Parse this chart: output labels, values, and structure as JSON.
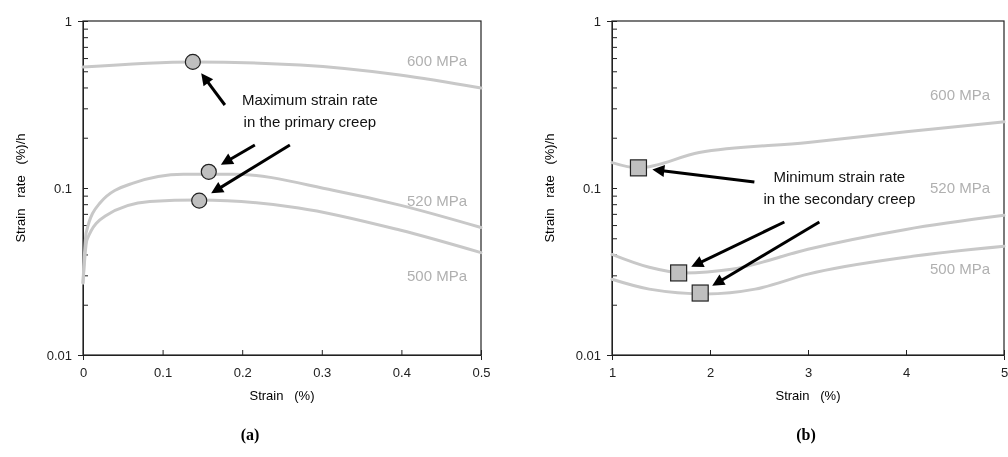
{
  "chart_data": [
    {
      "type": "line",
      "xlabel": "Strain   (%)",
      "ylabel": "Strain   rate   (%)/h",
      "log": "y",
      "grid": false,
      "xlim": [
        0,
        0.5
      ],
      "xticks": [
        0,
        0.1,
        0.2,
        0.3,
        0.4,
        0.5
      ],
      "ylim": [
        0.01,
        1
      ],
      "yticks": [
        0.01,
        {
          "value": 0.02,
          "label": null
        },
        {
          "value": 0.03,
          "label": null
        },
        {
          "value": 0.04,
          "label": null
        },
        {
          "value": 0.05,
          "label": null
        },
        {
          "value": 0.06,
          "label": null
        },
        {
          "value": 0.07,
          "label": null
        },
        {
          "value": 0.08,
          "label": null
        },
        {
          "value": 0.09,
          "label": null
        },
        0.1,
        {
          "value": 0.2,
          "label": null
        },
        {
          "value": 0.3,
          "label": null
        },
        {
          "value": 0.4,
          "label": null
        },
        {
          "value": 0.5,
          "label": null
        },
        {
          "value": 0.6,
          "label": null
        },
        {
          "value": 0.7,
          "label": null
        },
        {
          "value": 0.8,
          "label": null
        },
        {
          "value": 0.9,
          "label": null
        },
        1
      ],
      "series": [
        {
          "name": "600 MPa",
          "color": "#c8c8c8",
          "x": [
            0,
            0.138,
            0.273,
            0.398,
            0.5
          ],
          "values": [
            0.53,
            0.569,
            0.545,
            0.475,
            0.397
          ]
        },
        {
          "name": "520 MPa",
          "color": "#c8c8c8",
          "x": [
            0,
            0.004,
            0.021,
            0.063,
            0.126,
            0.19,
            0.314,
            0.398,
            0.5
          ],
          "values": [
            0.027,
            0.054,
            0.081,
            0.107,
            0.121,
            0.121,
            0.097,
            0.079,
            0.058
          ]
        },
        {
          "name": "500 MPa",
          "color": "#c8c8c8",
          "x": [
            0,
            0.005,
            0.028,
            0.084,
            0.146,
            0.271,
            0.398,
            0.5
          ],
          "values": [
            0.027,
            0.049,
            0.068,
            0.083,
            0.0847,
            0.076,
            0.056,
            0.041
          ]
        },
        {
          "type": "scatter",
          "color": "#bfbfbf",
          "marker": "circle",
          "x": [
            0.138,
            0.158,
            0.146
          ],
          "values": [
            0.569,
            0.125,
            0.084
          ]
        }
      ],
      "annotations": [
        "Maximum strain rate\nin the primary creep",
        "(a)"
      ]
    },
    {
      "type": "line",
      "xlabel": "Strain   (%)",
      "ylabel": "Strain   rate   (%)/h",
      "log": "y",
      "grid": false,
      "xlim": [
        1,
        5
      ],
      "xticks": [
        1,
        2,
        3,
        4,
        5
      ],
      "ylim": [
        0.01,
        1
      ],
      "yticks": [
        0.01,
        {
          "value": 0.02,
          "label": null
        },
        {
          "value": 0.03,
          "label": null
        },
        {
          "value": 0.04,
          "label": null
        },
        {
          "value": 0.05,
          "label": null
        },
        {
          "value": 0.06,
          "label": null
        },
        {
          "value": 0.07,
          "label": null
        },
        {
          "value": 0.08,
          "label": null
        },
        {
          "value": 0.09,
          "label": null
        },
        0.1,
        {
          "value": 0.2,
          "label": null
        },
        {
          "value": 0.3,
          "label": null
        },
        {
          "value": 0.4,
          "label": null
        },
        {
          "value": 0.5,
          "label": null
        },
        {
          "value": 0.6,
          "label": null
        },
        {
          "value": 0.7,
          "label": null
        },
        {
          "value": 0.8,
          "label": null
        },
        {
          "value": 0.9,
          "label": null
        },
        1
      ],
      "series": [
        {
          "name": "600 MPa",
          "color": "#c8c8c8",
          "x": [
            1,
            1.27,
            1.89,
            3,
            4,
            5
          ],
          "values": [
            0.142,
            0.132,
            0.163,
            0.187,
            0.217,
            0.249
          ]
        },
        {
          "name": "520 MPa",
          "color": "#c8c8c8",
          "x": [
            1,
            1.38,
            1.73,
            2.22,
            3,
            4,
            5
          ],
          "values": [
            0.04,
            0.0335,
            0.031,
            0.0326,
            0.043,
            0.0565,
            0.0686
          ]
        },
        {
          "name": "500 MPa",
          "color": "#c8c8c8",
          "x": [
            1,
            1.38,
            1.96,
            2.46,
            3,
            4,
            5
          ],
          "values": [
            0.0284,
            0.0248,
            0.0232,
            0.0248,
            0.0305,
            0.0385,
            0.0448
          ]
        },
        {
          "type": "scatter",
          "color": "#bfbfbf",
          "marker": "square",
          "x": [
            1.27,
            1.68,
            1.9
          ],
          "values": [
            0.132,
            0.031,
            0.0235
          ]
        }
      ],
      "annotations": [
        "Minimum strain rate\nin the secondary creep",
        "(b)"
      ]
    }
  ]
}
